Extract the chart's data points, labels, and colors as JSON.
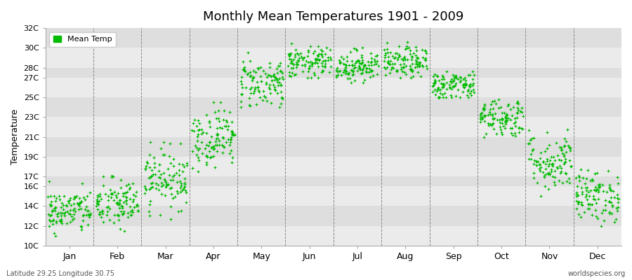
{
  "title": "Monthly Mean Temperatures 1901 - 2009",
  "ylabel": "Temperature",
  "xlabel": "",
  "bottom_left": "Latitude 29.25 Longitude 30.75",
  "bottom_right": "worldspecies.org",
  "legend_label": "Mean Temp",
  "marker_color": "#00BB00",
  "background_color": "#FFFFFF",
  "band_color_light": "#EBEBEB",
  "band_color_dark": "#DEDEDE",
  "ytick_labels": [
    "10C",
    "12C",
    "14C",
    "16C",
    "17C",
    "19C",
    "21C",
    "23C",
    "25C",
    "27C",
    "28C",
    "30C",
    "32C"
  ],
  "ytick_values": [
    10,
    12,
    14,
    16,
    17,
    19,
    21,
    23,
    25,
    27,
    28,
    30,
    32
  ],
  "ylim": [
    10,
    32
  ],
  "months": [
    "Jan",
    "Feb",
    "Mar",
    "Apr",
    "May",
    "Jun",
    "Jul",
    "Aug",
    "Sep",
    "Oct",
    "Nov",
    "Dec"
  ],
  "num_years": 109,
  "seed": 42,
  "monthly_means": [
    13.5,
    14.2,
    16.8,
    21.0,
    26.5,
    28.5,
    28.2,
    28.5,
    26.2,
    23.0,
    18.5,
    15.0
  ],
  "monthly_stds": [
    1.1,
    1.3,
    1.5,
    1.5,
    1.3,
    0.8,
    0.8,
    0.8,
    0.8,
    1.0,
    1.5,
    1.3
  ],
  "monthly_mins": [
    11.0,
    11.5,
    12.5,
    17.5,
    24.0,
    27.0,
    26.5,
    27.0,
    25.0,
    21.0,
    15.0,
    12.0
  ],
  "monthly_maxs": [
    16.5,
    17.5,
    20.5,
    24.5,
    30.0,
    30.5,
    30.0,
    31.0,
    28.5,
    26.5,
    22.5,
    18.5
  ]
}
